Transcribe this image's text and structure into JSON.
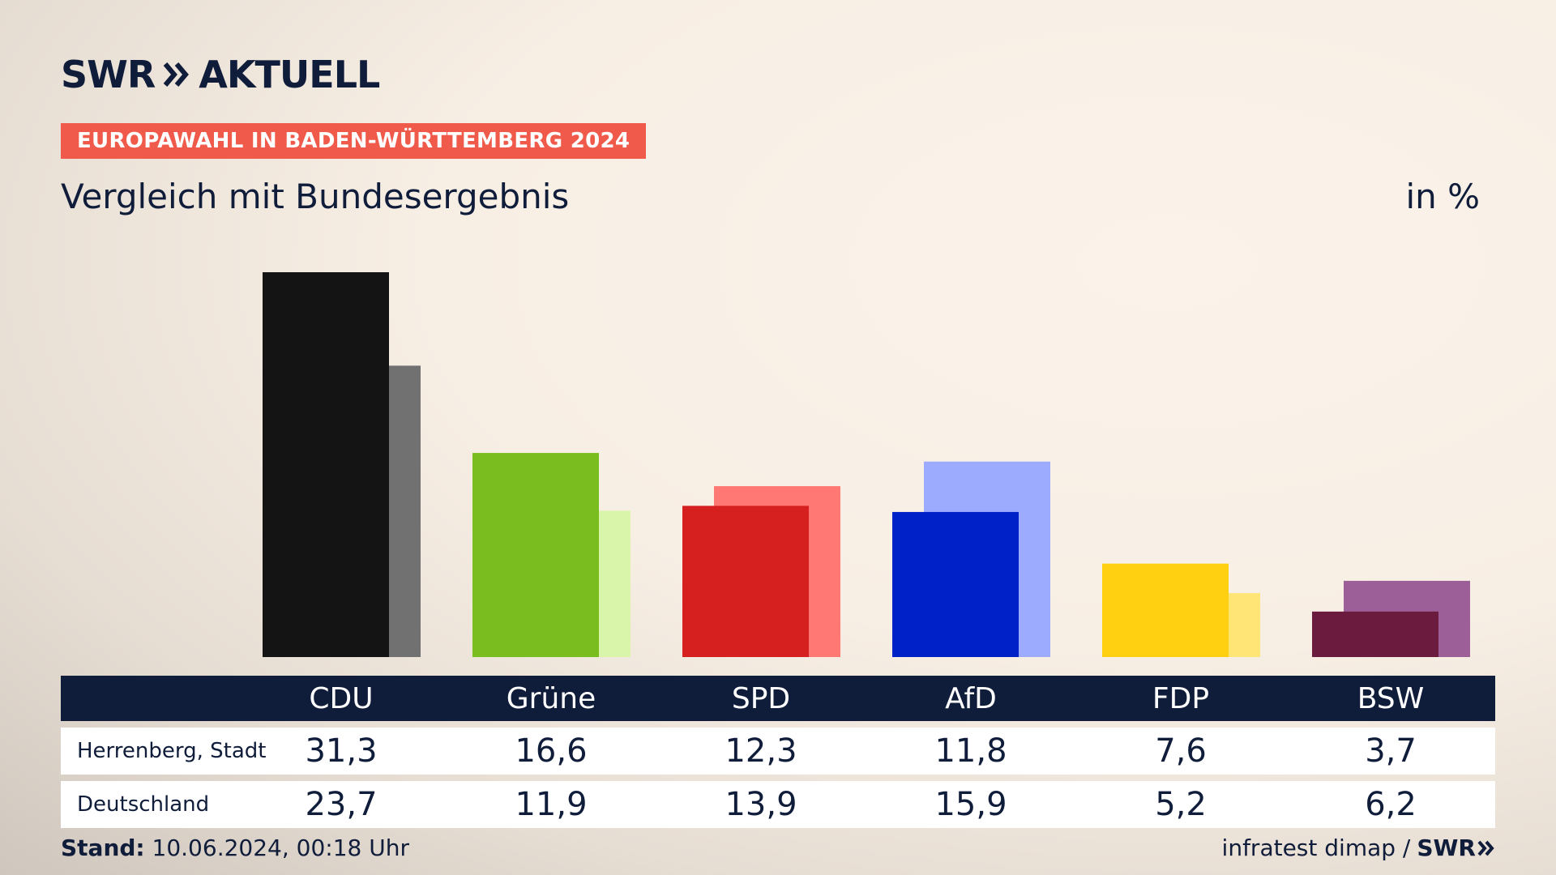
{
  "header": {
    "logo_primary": "SWR",
    "logo_secondary": "AKTUELL",
    "banner": "EUROPAWAHL IN BADEN-WÜRTTEMBERG 2024",
    "subtitle": "Vergleich mit Bundesergebnis",
    "unit": "in %"
  },
  "table": {
    "parties": [
      "CDU",
      "Grüne",
      "SPD",
      "AfD",
      "FDP",
      "BSW"
    ],
    "rows": [
      {
        "label": "Herrenberg, Stadt",
        "values": [
          "31,3",
          "16,6",
          "12,3",
          "11,8",
          "7,6",
          "3,7"
        ]
      },
      {
        "label": "Deutschland",
        "values": [
          "23,7",
          "11,9",
          "13,9",
          "15,9",
          "5,2",
          "6,2"
        ]
      }
    ]
  },
  "footer": {
    "stand_label": "Stand:",
    "stand_value": "10.06.2024, 00:18 Uhr",
    "source": "infratest dimap /",
    "source_logo": "SWR"
  },
  "colors": {
    "text": "#0f1c3a",
    "banner": "#f05a4a"
  },
  "chart_data": {
    "type": "bar",
    "categories": [
      "CDU",
      "Grüne",
      "SPD",
      "AfD",
      "FDP",
      "BSW"
    ],
    "series": [
      {
        "name": "Herrenberg, Stadt",
        "values": [
          31.3,
          16.6,
          12.3,
          11.8,
          7.6,
          3.7
        ],
        "colors": [
          "#141414",
          "#79bd1f",
          "#d61f1f",
          "#0020c8",
          "#ffd011",
          "#6a1b3e"
        ]
      },
      {
        "name": "Deutschland",
        "values": [
          23.7,
          11.9,
          13.9,
          15.9,
          5.2,
          6.2
        ],
        "colors": [
          "#717171",
          "#d8f5aa",
          "#ff7873",
          "#9dabff",
          "#ffe476",
          "#9c5f97"
        ]
      }
    ],
    "ylim": [
      0,
      31.3
    ],
    "grid": false,
    "legend": "none"
  }
}
